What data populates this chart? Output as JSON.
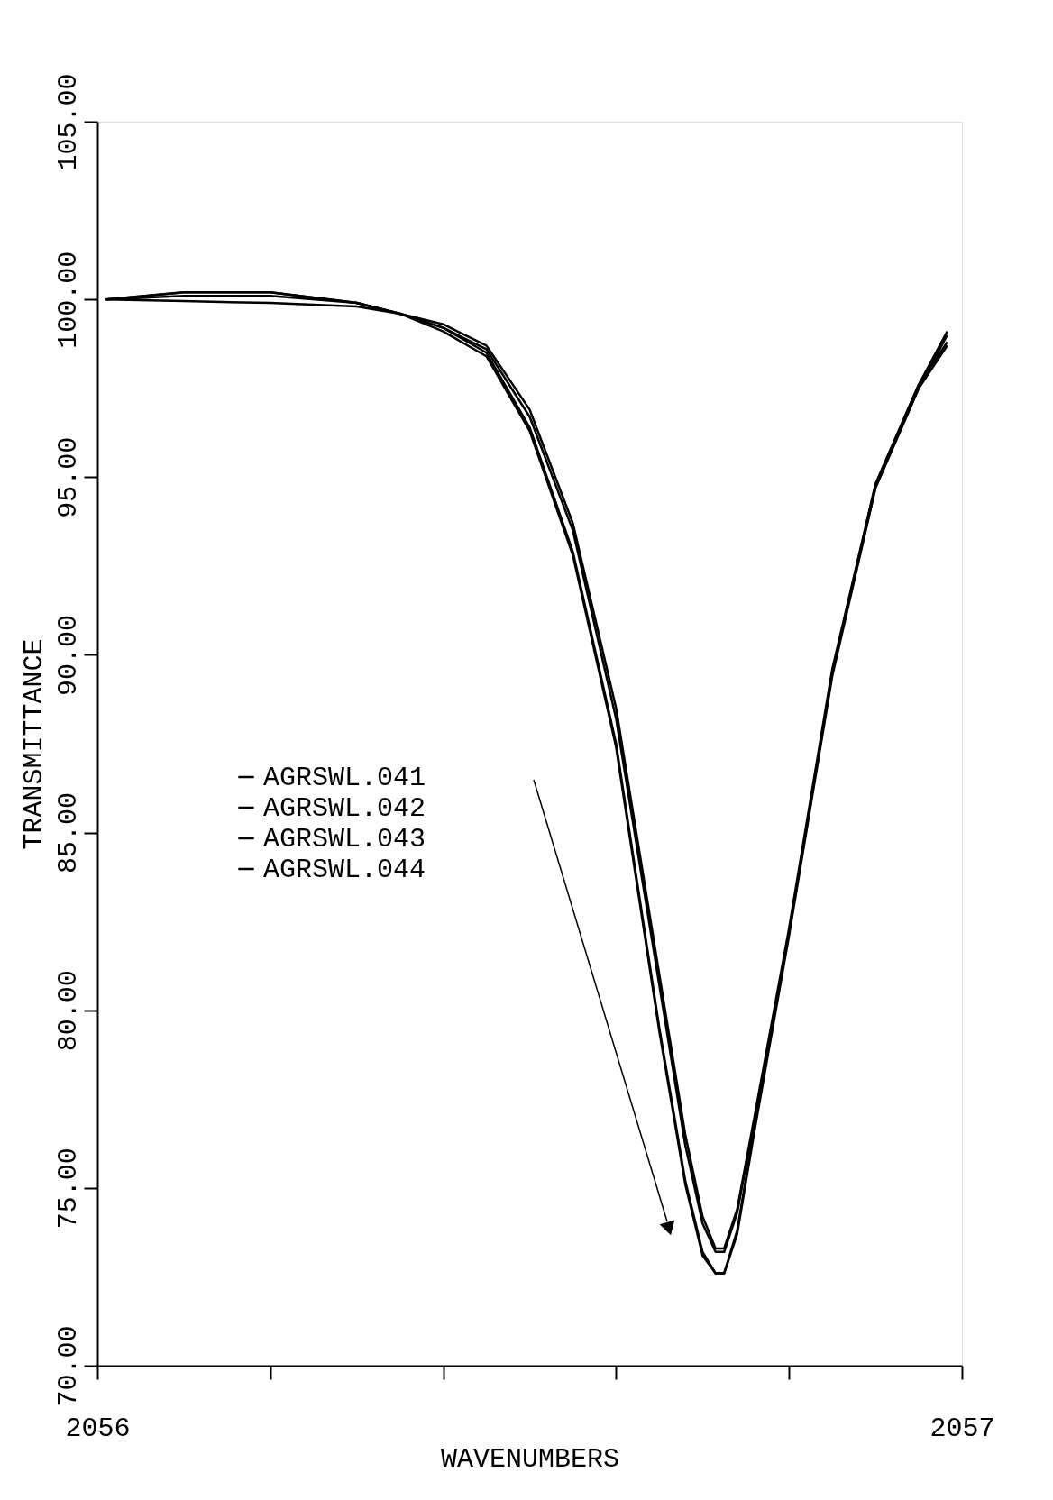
{
  "chart_data": {
    "type": "line",
    "xlabel": "WAVENUMBERS",
    "ylabel": "TRANSMITTANCE",
    "x": [
      2056.01,
      2056.1,
      2056.2,
      2056.3,
      2056.35,
      2056.4,
      2056.45,
      2056.5,
      2056.55,
      2056.6,
      2056.65,
      2056.68,
      2056.7,
      2056.715,
      2056.725,
      2056.74,
      2056.76,
      2056.8,
      2056.85,
      2056.9,
      2056.95,
      2056.983
    ],
    "series": [
      {
        "name": "AGRSWL.041",
        "color": "#000000",
        "values": [
          100.0,
          100.2,
          100.2,
          99.9,
          99.6,
          99.3,
          98.7,
          96.9,
          93.7,
          88.5,
          81.0,
          76.5,
          74.2,
          73.3,
          73.3,
          74.4,
          77.0,
          82.3,
          89.6,
          94.8,
          97.6,
          99.1
        ]
      },
      {
        "name": "AGRSWL.042",
        "color": "#000000",
        "values": [
          100.0,
          100.1,
          100.1,
          99.9,
          99.6,
          99.2,
          98.6,
          96.7,
          93.5,
          88.2,
          80.7,
          76.2,
          74.0,
          73.2,
          73.2,
          74.3,
          76.9,
          82.2,
          89.5,
          94.7,
          97.5,
          99.0
        ]
      },
      {
        "name": "AGRSWL.043",
        "color": "#000000",
        "values": [
          100.0,
          99.95,
          99.9,
          99.8,
          99.6,
          99.2,
          98.5,
          96.4,
          92.9,
          87.5,
          79.5,
          75.2,
          73.2,
          72.6,
          72.6,
          73.8,
          76.7,
          82.2,
          89.5,
          94.8,
          97.6,
          98.8
        ]
      },
      {
        "name": "AGRSWL.044",
        "color": "#000000",
        "values": [
          100.0,
          100.2,
          100.2,
          99.9,
          99.6,
          99.1,
          98.4,
          96.3,
          92.8,
          87.4,
          79.4,
          75.1,
          73.1,
          72.6,
          72.6,
          73.7,
          76.6,
          82.1,
          89.4,
          94.7,
          97.5,
          98.7
        ]
      }
    ],
    "xlim": [
      2056,
      2057
    ],
    "xticks": [
      2056,
      {
        "value": 2056.2,
        "label": null
      },
      {
        "value": 2056.4,
        "label": null
      },
      {
        "value": 2056.6,
        "label": null
      },
      {
        "value": 2056.8,
        "label": null
      },
      2057
    ],
    "ylim": [
      70,
      105
    ],
    "yticks": [
      {
        "value": 70,
        "label": "70.00"
      },
      {
        "value": 75,
        "label": "75.00"
      },
      {
        "value": 80,
        "label": "80.00"
      },
      {
        "value": 85,
        "label": "85.00"
      },
      {
        "value": 90,
        "label": "90.00"
      },
      {
        "value": 95,
        "label": "95.00"
      },
      {
        "value": 100,
        "label": "100.00"
      },
      {
        "value": 105,
        "label": "105.00"
      }
    ],
    "grid": false,
    "legend": "left",
    "marker": "none",
    "line_style": "solid"
  }
}
